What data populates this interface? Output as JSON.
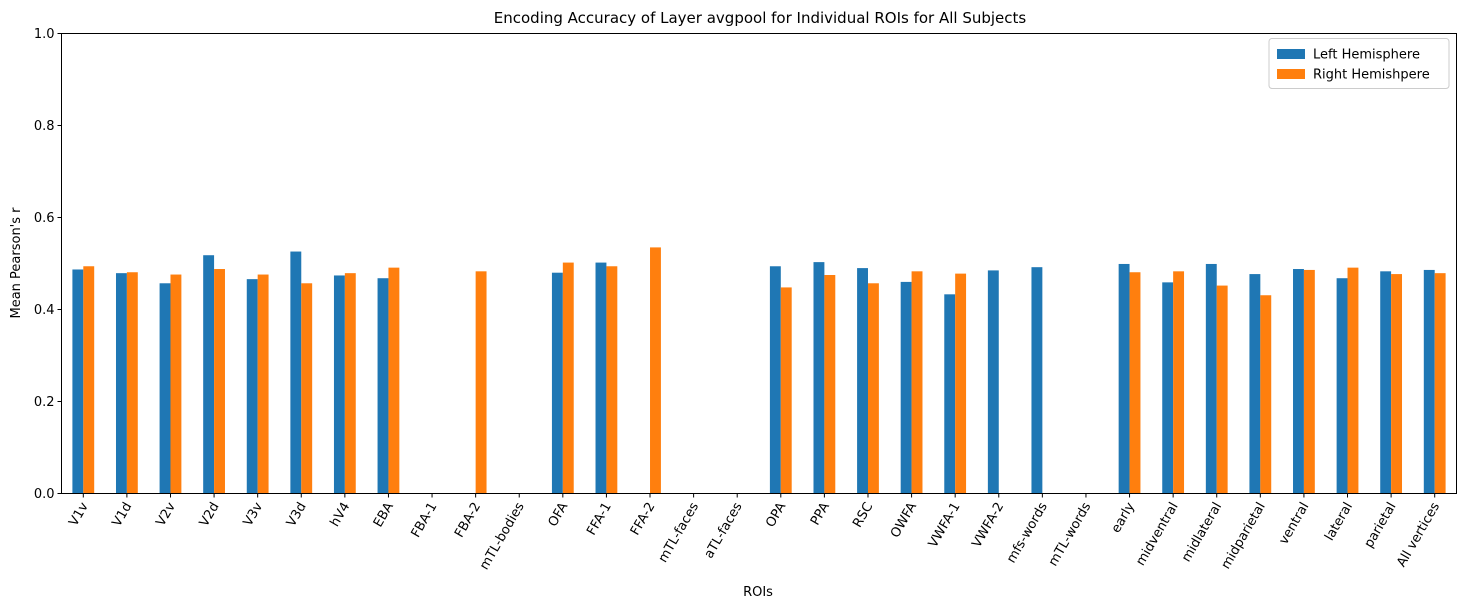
{
  "chart_data": {
    "type": "bar",
    "title": "Encoding Accuracy of Layer avgpool for Individual ROIs for All Subjects",
    "xlabel": "ROIs",
    "ylabel": "Mean Pearson's r",
    "ylim": [
      0,
      1.0
    ],
    "yticks": [
      "0.0",
      "0.2",
      "0.4",
      "0.6",
      "0.8",
      "1.0"
    ],
    "grid": false,
    "legend_position": "top-right",
    "categories": [
      "V1v",
      "V1d",
      "V2v",
      "V2d",
      "V3v",
      "V3d",
      "hV4",
      "EBA",
      "FBA-1",
      "FBA-2",
      "mTL-bodies",
      "OFA",
      "FFA-1",
      "FFA-2",
      "mTL-faces",
      "aTL-faces",
      "OPA",
      "PPA",
      "RSC",
      "OWFA",
      "VWFA-1",
      "VWFA-2",
      "mfs-words",
      "mTL-words",
      "early",
      "midventral",
      "midlateral",
      "midparietal",
      "ventral",
      "lateral",
      "parietal",
      "All vertices"
    ],
    "series": [
      {
        "name": "Left Hemisphere",
        "color": "#1f77b4",
        "values": [
          0.487,
          0.479,
          0.457,
          0.518,
          0.466,
          0.526,
          0.474,
          0.468,
          null,
          null,
          null,
          0.48,
          0.502,
          null,
          null,
          null,
          0.494,
          0.503,
          0.49,
          0.46,
          0.433,
          0.485,
          0.492,
          null,
          0.499,
          0.459,
          0.499,
          0.477,
          0.488,
          0.468,
          0.483,
          0.486
        ]
      },
      {
        "name": "Right Hemishpere",
        "color": "#ff7f0e",
        "values": [
          0.494,
          0.481,
          0.476,
          0.488,
          0.476,
          0.457,
          0.479,
          0.491,
          null,
          0.483,
          null,
          0.502,
          0.494,
          0.535,
          null,
          null,
          0.448,
          0.475,
          0.457,
          0.483,
          0.478,
          null,
          null,
          null,
          0.481,
          0.483,
          0.452,
          0.431,
          0.486,
          0.491,
          0.477,
          0.479
        ]
      }
    ]
  }
}
